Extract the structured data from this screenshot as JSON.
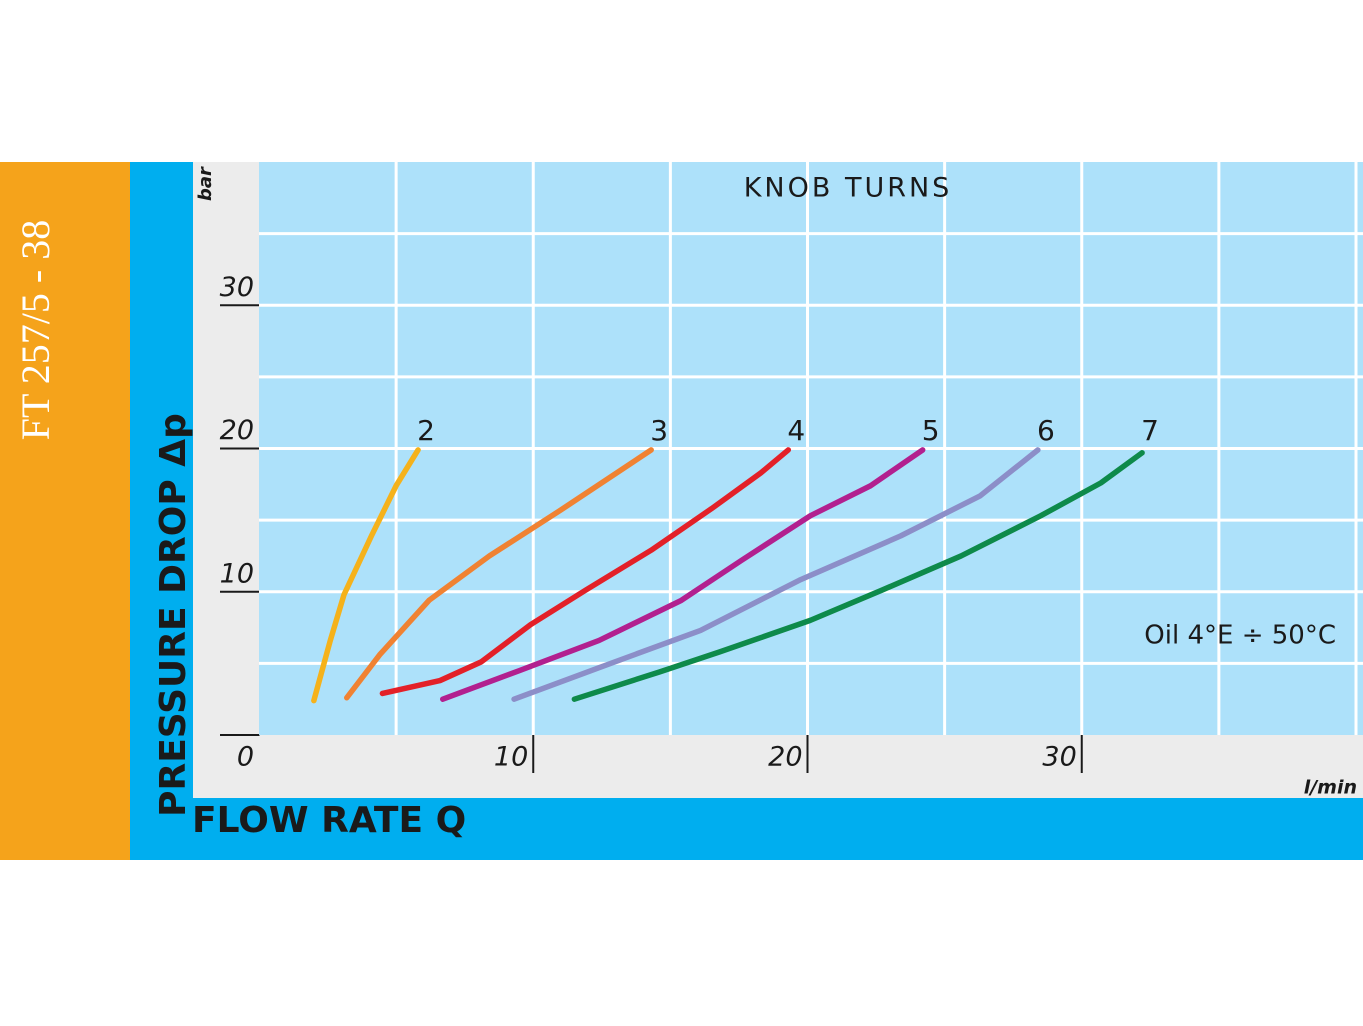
{
  "chart_data": {
    "type": "line",
    "side_title": "FT 257/5 - 38",
    "title": "KNOB TURNS",
    "annotation": "Oil 4°E ÷ 50°C",
    "x_label": "FLOW RATE Q",
    "y_label": "PRESSURE DROP Δp",
    "x_unit": "l/min",
    "y_unit": "bar",
    "xlim": [
      0,
      40
    ],
    "ylim": [
      0,
      40
    ],
    "xticks": [
      0,
      10,
      20,
      30
    ],
    "yticks": [
      10,
      20,
      30
    ],
    "xgrid": [
      5,
      10,
      15,
      20,
      25,
      30,
      35,
      40
    ],
    "ygrid": [
      5,
      10,
      15,
      20,
      25,
      30,
      35
    ],
    "series": [
      {
        "name": "2",
        "color": "#f5b21b",
        "x": [
          2.0,
          2.6,
          3.1,
          4.1,
          5.0,
          5.8
        ],
        "values": [
          2.4,
          6.6,
          9.8,
          13.9,
          17.4,
          19.9
        ]
      },
      {
        "name": "3",
        "color": "#f08232",
        "x": [
          3.2,
          4.4,
          6.2,
          8.4,
          11.0,
          14.3
        ],
        "values": [
          2.6,
          5.6,
          9.4,
          12.5,
          15.7,
          19.9
        ]
      },
      {
        "name": "4",
        "color": "#e32028",
        "x": [
          4.5,
          6.6,
          8.1,
          9.9,
          11.9,
          14.3,
          16.5,
          18.3,
          19.3
        ],
        "values": [
          2.9,
          3.8,
          5.1,
          7.7,
          10.1,
          12.9,
          15.8,
          18.3,
          19.9
        ]
      },
      {
        "name": "5",
        "color": "#b2208f",
        "x": [
          6.7,
          9.5,
          12.4,
          15.4,
          17.6,
          20.1,
          22.3,
          24.2
        ],
        "values": [
          2.5,
          4.5,
          6.6,
          9.4,
          12.2,
          15.3,
          17.4,
          19.9
        ]
      },
      {
        "name": "6",
        "color": "#8c8ec8",
        "x": [
          9.3,
          12.4,
          16.1,
          19.7,
          23.4,
          26.3,
          28.4
        ],
        "values": [
          2.5,
          4.7,
          7.3,
          10.8,
          13.9,
          16.7,
          19.9
        ]
      },
      {
        "name": "7",
        "color": "#0e8a4a",
        "x": [
          11.5,
          14.6,
          16.8,
          20.1,
          22.7,
          25.6,
          28.5,
          30.7,
          32.2
        ],
        "values": [
          2.5,
          4.4,
          5.8,
          8.0,
          10.1,
          12.5,
          15.3,
          17.6,
          19.7
        ]
      }
    ]
  }
}
